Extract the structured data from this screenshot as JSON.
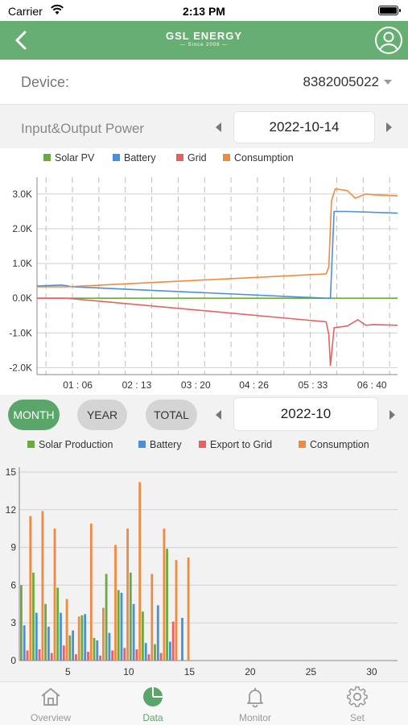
{
  "status_bar": {
    "carrier": "Carrier",
    "time": "2:13 PM"
  },
  "header": {
    "brand": "GSL ENERGY",
    "since": "— Since 2006 —"
  },
  "device": {
    "label": "Device:",
    "value": "8382005022"
  },
  "power": {
    "label": "Input&Output Power",
    "date": "2022-10-14"
  },
  "range": {
    "tabs": [
      "MONTH",
      "YEAR",
      "TOTAL"
    ],
    "selected": "MONTH",
    "date": "2022-10"
  },
  "colors": {
    "green": "#5aa66a",
    "solar": "#6aaa3e",
    "battery": "#4a90d9",
    "grid": "#e86161",
    "consumption": "#ef8a40"
  },
  "chart_data": [
    {
      "type": "line",
      "legend": [
        "Solar PV",
        "Battery",
        "Grid",
        "Consumption"
      ],
      "y_ticks": [
        "3.0K",
        "2.0K",
        "1.0K",
        "0.0K",
        "-1.0K",
        "-2.0K"
      ],
      "x_ticks": [
        "01 : 06",
        "02 : 13",
        "03 : 20",
        "04 : 26",
        "05 : 33",
        "06 : 40"
      ],
      "ylim": [
        -2200,
        3300
      ],
      "x_range_hours": [
        0.33,
        7.15
      ],
      "series": [
        {
          "name": "Solar PV",
          "x": [
            0.33,
            5.85,
            5.9,
            7.15
          ],
          "y": [
            0,
            0,
            0,
            0
          ]
        },
        {
          "name": "Battery",
          "x": [
            0.33,
            0.8,
            1.0,
            5.8,
            5.88,
            5.95,
            6.2,
            7.15
          ],
          "y": [
            350,
            380,
            330,
            0,
            0,
            2500,
            2500,
            2450
          ]
        },
        {
          "name": "Grid",
          "x": [
            0.33,
            0.9,
            5.8,
            5.85,
            5.88,
            5.95,
            6.2,
            6.4,
            6.55,
            6.7,
            7.15
          ],
          "y": [
            0,
            0,
            -680,
            -1050,
            -1950,
            -850,
            -800,
            -620,
            -780,
            -760,
            -780
          ]
        },
        {
          "name": "Consumption",
          "x": [
            0.33,
            0.9,
            5.8,
            5.85,
            5.9,
            5.97,
            6.2,
            6.35,
            6.55,
            6.7,
            7.15
          ],
          "y": [
            330,
            330,
            700,
            900,
            2800,
            3150,
            3100,
            2880,
            3000,
            2980,
            2950
          ]
        }
      ]
    },
    {
      "type": "bar",
      "legend": [
        "Solar Production",
        "Battery",
        "Export to Grid",
        "Consumption"
      ],
      "y_ticks": [
        "15",
        "12",
        "9",
        "6",
        "3",
        "0"
      ],
      "ylim": [
        0,
        15
      ],
      "x_ticks": [
        "5",
        "10",
        "15",
        "20",
        "25",
        "30"
      ],
      "xlim": [
        1,
        31
      ],
      "days": [
        1,
        2,
        3,
        4,
        5,
        6,
        7,
        8,
        9,
        10,
        11,
        12,
        13,
        14
      ],
      "series": [
        {
          "name": "Solar Production",
          "values": [
            6.0,
            7.0,
            4.5,
            5.8,
            2.0,
            3.6,
            1.8,
            6.9,
            5.6,
            7.0,
            3.9,
            1.3,
            8.9,
            0
          ]
        },
        {
          "name": "Battery",
          "values": [
            2.8,
            3.8,
            2.7,
            3.8,
            2.4,
            3.7,
            1.6,
            2.2,
            5.4,
            4.5,
            1.4,
            4.4,
            1.5,
            3.4
          ]
        },
        {
          "name": "Export to Grid",
          "values": [
            0.8,
            0.9,
            0.6,
            1.2,
            0.5,
            0.7,
            0.4,
            0.8,
            1.0,
            0.9,
            0.5,
            0.6,
            3.1,
            0
          ]
        },
        {
          "name": "Consumption",
          "values": [
            11.5,
            11.9,
            10.5,
            4.9,
            3.5,
            10.9,
            4.2,
            9.2,
            10.5,
            14.2,
            6.9,
            10.5,
            8.0,
            8.2
          ]
        }
      ]
    }
  ],
  "tabbar": [
    {
      "label": "Overview",
      "icon": "home-icon"
    },
    {
      "label": "Data",
      "icon": "pie-chart-icon"
    },
    {
      "label": "Monitor",
      "icon": "bell-icon"
    },
    {
      "label": "Set",
      "icon": "gear-icon"
    }
  ]
}
